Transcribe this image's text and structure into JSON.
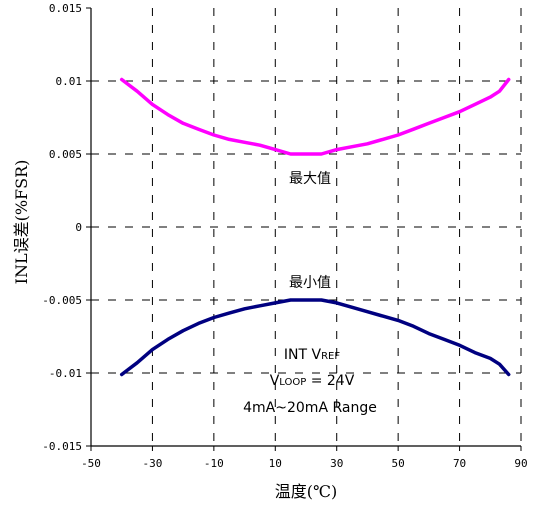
{
  "chart_data": {
    "type": "line",
    "xlabel": "温度(℃)",
    "ylabel": "INL误差(%FSR)",
    "xlim": [
      -50,
      90
    ],
    "ylim": [
      -0.015,
      0.015
    ],
    "x_ticks": [
      -50,
      -30,
      -10,
      10,
      30,
      50,
      70,
      90
    ],
    "x_tick_labels": [
      "-50",
      "-30",
      "-10",
      "10",
      "30",
      "50",
      "70",
      "90"
    ],
    "y_ticks": [
      0.015,
      0.01,
      0.005,
      0,
      -0.005,
      -0.01,
      -0.015
    ],
    "y_tick_labels": [
      "0.015",
      "0.01",
      "0.005",
      "0",
      "-0.005",
      "-0.01",
      "-0.015"
    ],
    "grid": true,
    "series": [
      {
        "name": "最大值",
        "color": "#ff00ff",
        "x": [
          -40,
          -35,
          -30,
          -25,
          -20,
          -15,
          -10,
          -5,
          0,
          5,
          10,
          15,
          20,
          25,
          30,
          35,
          40,
          45,
          50,
          55,
          60,
          65,
          70,
          75,
          80,
          83,
          86
        ],
        "y": [
          0.0101,
          0.0093,
          0.0084,
          0.0077,
          0.0071,
          0.0067,
          0.0063,
          0.006,
          0.0058,
          0.0056,
          0.0053,
          0.005,
          0.005,
          0.005,
          0.0053,
          0.0055,
          0.0057,
          0.006,
          0.0063,
          0.0067,
          0.0071,
          0.0075,
          0.0079,
          0.0084,
          0.0089,
          0.0093,
          0.0101
        ]
      },
      {
        "name": "最小值",
        "color": "#000080",
        "x": [
          -40,
          -35,
          -30,
          -25,
          -20,
          -15,
          -10,
          -5,
          0,
          5,
          10,
          15,
          20,
          25,
          30,
          35,
          40,
          45,
          50,
          55,
          60,
          65,
          70,
          75,
          80,
          83,
          86
        ],
        "y": [
          -0.0101,
          -0.0093,
          -0.0084,
          -0.0077,
          -0.0071,
          -0.0066,
          -0.0062,
          -0.0059,
          -0.0056,
          -0.0054,
          -0.0052,
          -0.005,
          -0.005,
          -0.005,
          -0.0052,
          -0.0055,
          -0.0058,
          -0.0061,
          -0.0064,
          -0.0068,
          -0.0073,
          -0.0077,
          -0.0081,
          -0.0086,
          -0.009,
          -0.0094,
          -0.0101
        ]
      }
    ],
    "annotations": {
      "line1": "INT VREF",
      "line2": "VLOOP = 24V",
      "line3": "4mA~20mA Range"
    }
  }
}
